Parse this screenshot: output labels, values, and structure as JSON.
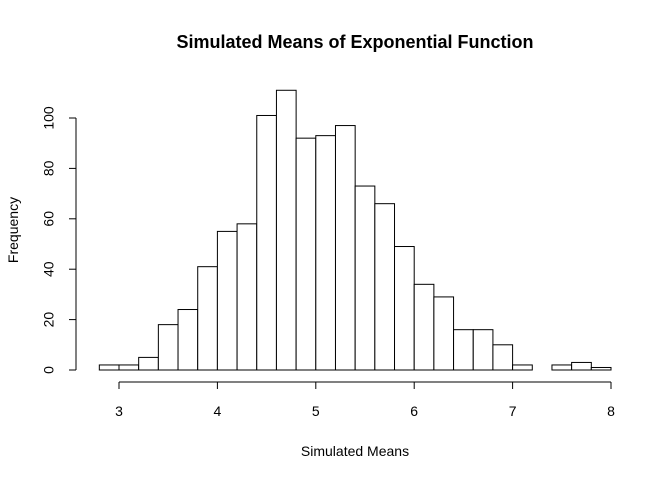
{
  "chart_data": {
    "type": "bar",
    "title": "Simulated Means of Exponential Function",
    "xlabel": "Simulated Means",
    "ylabel": "Frequency",
    "xlim": [
      2.8,
      8.0
    ],
    "ylim": [
      0,
      111
    ],
    "xticks": [
      3,
      4,
      5,
      6,
      7,
      8
    ],
    "yticks": [
      0,
      20,
      40,
      60,
      80,
      100
    ],
    "bin_width": 0.2,
    "bins": [
      {
        "x0": 2.8,
        "x1": 3.0,
        "count": 2
      },
      {
        "x0": 3.0,
        "x1": 3.2,
        "count": 2
      },
      {
        "x0": 3.2,
        "x1": 3.4,
        "count": 5
      },
      {
        "x0": 3.4,
        "x1": 3.6,
        "count": 18
      },
      {
        "x0": 3.6,
        "x1": 3.8,
        "count": 24
      },
      {
        "x0": 3.8,
        "x1": 4.0,
        "count": 41
      },
      {
        "x0": 4.0,
        "x1": 4.2,
        "count": 55
      },
      {
        "x0": 4.2,
        "x1": 4.4,
        "count": 58
      },
      {
        "x0": 4.4,
        "x1": 4.6,
        "count": 101
      },
      {
        "x0": 4.6,
        "x1": 4.8,
        "count": 111
      },
      {
        "x0": 4.8,
        "x1": 5.0,
        "count": 92
      },
      {
        "x0": 5.0,
        "x1": 5.2,
        "count": 93
      },
      {
        "x0": 5.2,
        "x1": 5.4,
        "count": 97
      },
      {
        "x0": 5.4,
        "x1": 5.6,
        "count": 73
      },
      {
        "x0": 5.6,
        "x1": 5.8,
        "count": 66
      },
      {
        "x0": 5.8,
        "x1": 6.0,
        "count": 49
      },
      {
        "x0": 6.0,
        "x1": 6.2,
        "count": 34
      },
      {
        "x0": 6.2,
        "x1": 6.4,
        "count": 29
      },
      {
        "x0": 6.4,
        "x1": 6.6,
        "count": 16
      },
      {
        "x0": 6.6,
        "x1": 6.8,
        "count": 16
      },
      {
        "x0": 6.8,
        "x1": 7.0,
        "count": 10
      },
      {
        "x0": 7.0,
        "x1": 7.2,
        "count": 2
      },
      {
        "x0": 7.2,
        "x1": 7.4,
        "count": 0
      },
      {
        "x0": 7.4,
        "x1": 7.6,
        "count": 2
      },
      {
        "x0": 7.6,
        "x1": 7.8,
        "count": 3
      },
      {
        "x0": 7.8,
        "x1": 8.0,
        "count": 1
      }
    ],
    "grid": false,
    "legend": "none",
    "colors": {
      "bar_fill": "#ffffff",
      "bar_stroke": "#000000"
    }
  }
}
